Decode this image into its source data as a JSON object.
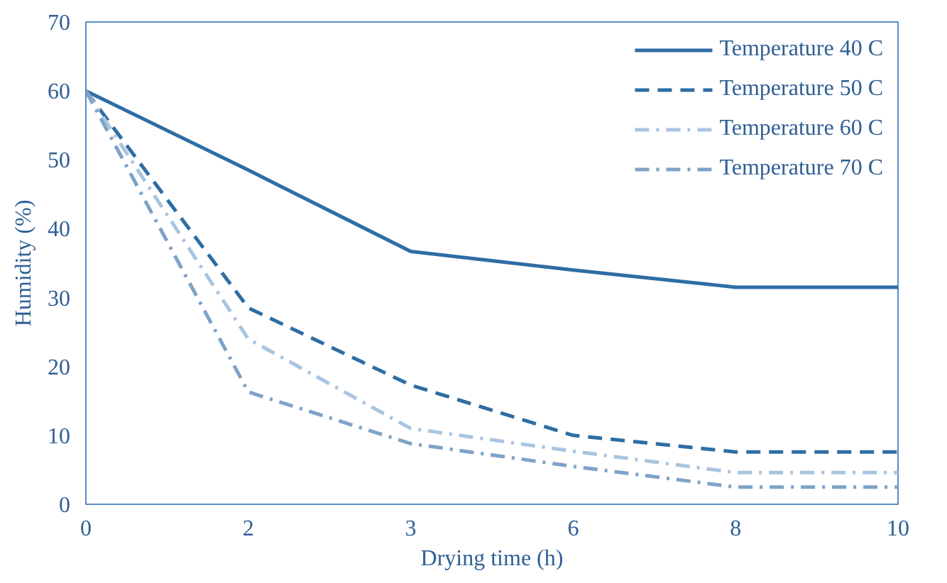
{
  "chart_data": {
    "type": "line",
    "xlabel": "Drying time (h)",
    "ylabel": "Humidity (%)",
    "categories": [
      "0",
      "2",
      "3",
      "6",
      "8",
      "10"
    ],
    "ylim": [
      0,
      70
    ],
    "yticks": [
      0,
      10,
      20,
      30,
      40,
      50,
      60,
      70
    ],
    "grid": false,
    "legend": "top right",
    "series": [
      {
        "name": "Temperature 40 C",
        "color": "#2e6da4",
        "line_style": "solid",
        "values": [
          60,
          48.5,
          36.7,
          34,
          31.5,
          31.5
        ]
      },
      {
        "name": "Temperature 50 C",
        "color": "#2e6da4",
        "line_style": "dashed",
        "values": [
          60,
          28.5,
          17.3,
          10,
          7.6,
          7.6
        ]
      },
      {
        "name": "Temperature 60 C",
        "color": "#a9c4e0",
        "line_style": "dotted",
        "values": [
          60,
          24,
          11,
          7.7,
          4.6,
          4.6
        ]
      },
      {
        "name": "Temperature 70 C",
        "color": "#7fa2c8",
        "line_style": "dotted",
        "values": [
          60,
          16.3,
          8.8,
          5.5,
          2.5,
          2.5
        ]
      }
    ]
  }
}
